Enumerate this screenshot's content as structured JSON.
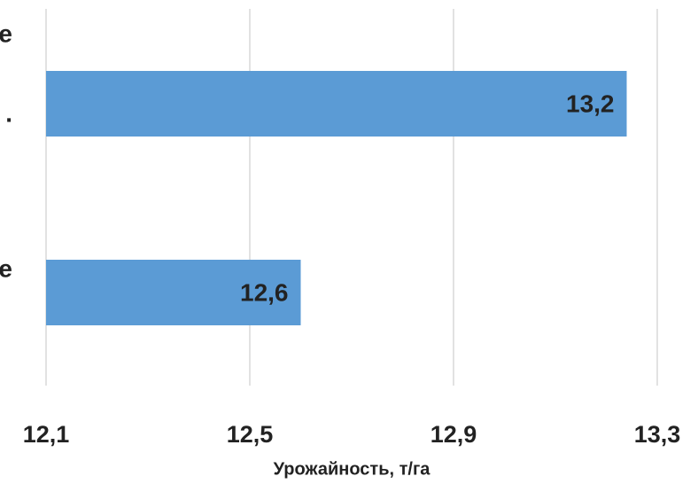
{
  "chart_data": {
    "type": "barh",
    "categories": [
      [
        "e",
        "."
      ],
      [
        "e"
      ]
    ],
    "values": [
      13.24,
      12.6
    ],
    "value_labels": [
      "13,2",
      "12,6"
    ],
    "color": "#5b9bd5",
    "xlim": [
      12.1,
      13.3
    ],
    "xticks": [
      {
        "value": 12.1,
        "label": "12,1"
      },
      {
        "value": 12.5,
        "label": "12,5"
      },
      {
        "value": 12.9,
        "label": "12,9"
      },
      {
        "value": 13.3,
        "label": "13,3"
      }
    ],
    "xlabel": "Урожайность, т/га",
    "grid": true
  }
}
